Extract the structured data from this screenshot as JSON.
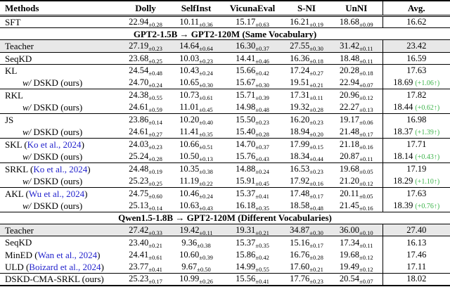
{
  "colors": {
    "citation_blue": "#2222cc",
    "gain_green": "#3cb44a",
    "teacher_row_gray": "#e8e8e8"
  },
  "table": {
    "columns": [
      "Methods",
      "Dolly",
      "SelfInst",
      "VicunaEval",
      "S-NI",
      "UnNI",
      "Avg."
    ],
    "rows": [
      {
        "type": "data",
        "name": "SFT",
        "cells": [
          {
            "v": "22.94",
            "pm": "0.28"
          },
          {
            "v": "10.11",
            "pm": "0.36"
          },
          {
            "v": "15.17",
            "pm": "0.63"
          },
          {
            "v": "16.21",
            "pm": "0.19"
          },
          {
            "v": "18.68",
            "pm": "0.09"
          }
        ],
        "avg": "16.62",
        "rb": true
      },
      {
        "type": "section",
        "label": "GPT2-1.5B → GPT2-120M (Same Vocabulary)",
        "rb": true
      },
      {
        "type": "data",
        "name": "Teacher",
        "hl": true,
        "cells": [
          {
            "v": "27.19",
            "pm": "0.23"
          },
          {
            "v": "14.64",
            "pm": "0.64"
          },
          {
            "v": "16.30",
            "pm": "0.37"
          },
          {
            "v": "27.55",
            "pm": "0.30"
          },
          {
            "v": "31.42",
            "pm": "0.11"
          }
        ],
        "avg": "23.42",
        "rb": true
      },
      {
        "type": "data",
        "name": "SeqKD",
        "cells": [
          {
            "v": "23.68",
            "pm": "0.25"
          },
          {
            "v": "10.03",
            "pm": "0.23"
          },
          {
            "v": "14.41",
            "pm": "0.46"
          },
          {
            "v": "16.36",
            "pm": "0.18"
          },
          {
            "v": "18.48",
            "pm": "0.11"
          }
        ],
        "avg": "16.59",
        "rb": true
      },
      {
        "type": "data",
        "name": "KL",
        "cells": [
          {
            "v": "24.54",
            "pm": "0.48"
          },
          {
            "v": "10.43",
            "pm": "0.24"
          },
          {
            "v": "15.66",
            "pm": "0.42"
          },
          {
            "v": "17.24",
            "pm": "0.27"
          },
          {
            "v": "20.28",
            "pm": "0.18"
          }
        ],
        "avg": "17.63"
      },
      {
        "type": "data",
        "name": "DSKD (ours)",
        "wpfx": "w/",
        "indent": true,
        "cells": [
          {
            "v": "24.70",
            "pm": "0.24"
          },
          {
            "v": "10.65",
            "pm": "0.30"
          },
          {
            "v": "15.67",
            "pm": "0.30"
          },
          {
            "v": "19.51",
            "pm": "0.21"
          },
          {
            "v": "22.94",
            "pm": "0.07"
          }
        ],
        "avg": "18.69",
        "gain": "(+1.06↑)",
        "rb": true
      },
      {
        "type": "data",
        "name": "RKL",
        "cells": [
          {
            "v": "24.38",
            "pm": "0.55"
          },
          {
            "v": "10.73",
            "pm": "0.61"
          },
          {
            "v": "15.71",
            "pm": "0.39"
          },
          {
            "v": "17.31",
            "pm": "0.11"
          },
          {
            "v": "20.96",
            "pm": "0.12"
          }
        ],
        "avg": "17.82"
      },
      {
        "type": "data",
        "name": "DSKD (ours)",
        "wpfx": "w/",
        "indent": true,
        "cells": [
          {
            "v": "24.61",
            "pm": "0.59"
          },
          {
            "v": "11.01",
            "pm": "0.45"
          },
          {
            "v": "14.98",
            "pm": "0.48"
          },
          {
            "v": "19.32",
            "pm": "0.28"
          },
          {
            "v": "22.27",
            "pm": "0.13"
          }
        ],
        "avg": "18.44",
        "gain": "(+0.62↑)",
        "rb": true
      },
      {
        "type": "data",
        "name": "JS",
        "cells": [
          {
            "v": "23.86",
            "pm": "0.14"
          },
          {
            "v": "10.20",
            "pm": "0.40"
          },
          {
            "v": "15.50",
            "pm": "0.23"
          },
          {
            "v": "16.20",
            "pm": "0.23"
          },
          {
            "v": "19.17",
            "pm": "0.06"
          }
        ],
        "avg": "16.98"
      },
      {
        "type": "data",
        "name": "DSKD (ours)",
        "wpfx": "w/",
        "indent": true,
        "cells": [
          {
            "v": "24.61",
            "pm": "0.27"
          },
          {
            "v": "11.41",
            "pm": "0.35"
          },
          {
            "v": "15.40",
            "pm": "0.28"
          },
          {
            "v": "18.94",
            "pm": "0.20"
          },
          {
            "v": "21.48",
            "pm": "0.17"
          }
        ],
        "avg": "18.37",
        "gain": "(+1.39↑)",
        "rb": true
      },
      {
        "type": "data",
        "name": "SKL",
        "cite": "Ko et al., 2024",
        "cells": [
          {
            "v": "24.03",
            "pm": "0.23"
          },
          {
            "v": "10.66",
            "pm": "0.51"
          },
          {
            "v": "14.70",
            "pm": "0.37"
          },
          {
            "v": "17.99",
            "pm": "0.15"
          },
          {
            "v": "21.18",
            "pm": "0.16"
          }
        ],
        "avg": "17.71"
      },
      {
        "type": "data",
        "name": "DSKD (ours)",
        "wpfx": "w/",
        "indent": true,
        "cells": [
          {
            "v": "25.24",
            "pm": "0.28"
          },
          {
            "v": "10.50",
            "pm": "0.13"
          },
          {
            "v": "15.76",
            "pm": "0.43"
          },
          {
            "v": "18.34",
            "pm": "0.44"
          },
          {
            "v": "20.87",
            "pm": "0.11"
          }
        ],
        "avg": "18.14",
        "gain": "(+0.43↑)",
        "rb": true
      },
      {
        "type": "data",
        "name": "SRKL",
        "cite": "Ko et al., 2024",
        "cells": [
          {
            "v": "24.48",
            "pm": "0.19"
          },
          {
            "v": "10.35",
            "pm": "0.38"
          },
          {
            "v": "14.88",
            "pm": "0.24"
          },
          {
            "v": "16.53",
            "pm": "0.23"
          },
          {
            "v": "19.68",
            "pm": "0.05"
          }
        ],
        "avg": "17.19"
      },
      {
        "type": "data",
        "name": "DSKD (ours)",
        "wpfx": "w/",
        "indent": true,
        "cells": [
          {
            "v": "25.23",
            "pm": "0.25"
          },
          {
            "v": "11.19",
            "pm": "0.22"
          },
          {
            "v": "15.91",
            "pm": "0.45"
          },
          {
            "v": "17.92",
            "pm": "0.16"
          },
          {
            "v": "21.20",
            "pm": "0.12"
          }
        ],
        "avg": "18.29",
        "gain": "(+1.10↑)",
        "rb": true
      },
      {
        "type": "data",
        "name": "AKL",
        "cite": "Wu et al., 2024",
        "cells": [
          {
            "v": "24.75",
            "pm": "0.60"
          },
          {
            "v": "10.46",
            "pm": "0.24"
          },
          {
            "v": "15.37",
            "pm": "0.41"
          },
          {
            "v": "17.48",
            "pm": "0.17"
          },
          {
            "v": "20.11",
            "pm": "0.05"
          }
        ],
        "avg": "17.63"
      },
      {
        "type": "data",
        "name": "DSKD (ours)",
        "wpfx": "w/",
        "indent": true,
        "cells": [
          {
            "v": "25.13",
            "pm": "0.14"
          },
          {
            "v": "10.63",
            "pm": "0.43"
          },
          {
            "v": "16.18",
            "pm": "0.35"
          },
          {
            "v": "18.58",
            "pm": "0.48"
          },
          {
            "v": "21.45",
            "pm": "0.16"
          }
        ],
        "avg": "18.39",
        "gain": "(+0.76↑)",
        "rb": true
      },
      {
        "type": "section",
        "label": "Qwen1.5-1.8B → GPT2-120M (Different Vocabularies)",
        "rb": true
      },
      {
        "type": "data",
        "name": "Teacher",
        "hl": true,
        "cells": [
          {
            "v": "27.42",
            "pm": "0.33"
          },
          {
            "v": "19.42",
            "pm": "0.11"
          },
          {
            "v": "19.31",
            "pm": "0.21"
          },
          {
            "v": "34.87",
            "pm": "0.30"
          },
          {
            "v": "36.00",
            "pm": "0.10"
          }
        ],
        "avg": "27.40",
        "rb": true
      },
      {
        "type": "data",
        "name": "SeqKD",
        "cells": [
          {
            "v": "23.40",
            "pm": "0.21"
          },
          {
            "v": "9.36",
            "pm": "0.38"
          },
          {
            "v": "15.37",
            "pm": "0.35"
          },
          {
            "v": "15.16",
            "pm": "0.17"
          },
          {
            "v": "17.34",
            "pm": "0.11"
          }
        ],
        "avg": "16.13"
      },
      {
        "type": "data",
        "name": "MinED",
        "cite": "Wan et al., 2024",
        "cells": [
          {
            "v": "24.41",
            "pm": "0.61"
          },
          {
            "v": "10.60",
            "pm": "0.39"
          },
          {
            "v": "15.86",
            "pm": "0.42"
          },
          {
            "v": "16.76",
            "pm": "0.28"
          },
          {
            "v": "19.68",
            "pm": "0.12"
          }
        ],
        "avg": "17.46"
      },
      {
        "type": "data",
        "name": "ULD",
        "cite": "Boizard et al., 2024",
        "cells": [
          {
            "v": "23.77",
            "pm": "0.41"
          },
          {
            "v": "9.67",
            "pm": "0.50"
          },
          {
            "v": "14.99",
            "pm": "0.55"
          },
          {
            "v": "17.60",
            "pm": "0.21"
          },
          {
            "v": "19.49",
            "pm": "0.12"
          }
        ],
        "avg": "17.11",
        "rb": true
      },
      {
        "type": "data",
        "name": "DSKD-CMA-SRKL (ours)",
        "cells": [
          {
            "v": "25.23",
            "pm": "0.17"
          },
          {
            "v": "10.99",
            "pm": "0.26"
          },
          {
            "v": "15.56",
            "pm": "0.41"
          },
          {
            "v": "17.76",
            "pm": "0.23"
          },
          {
            "v": "20.54",
            "pm": "0.07"
          }
        ],
        "avg": "18.02"
      }
    ]
  }
}
